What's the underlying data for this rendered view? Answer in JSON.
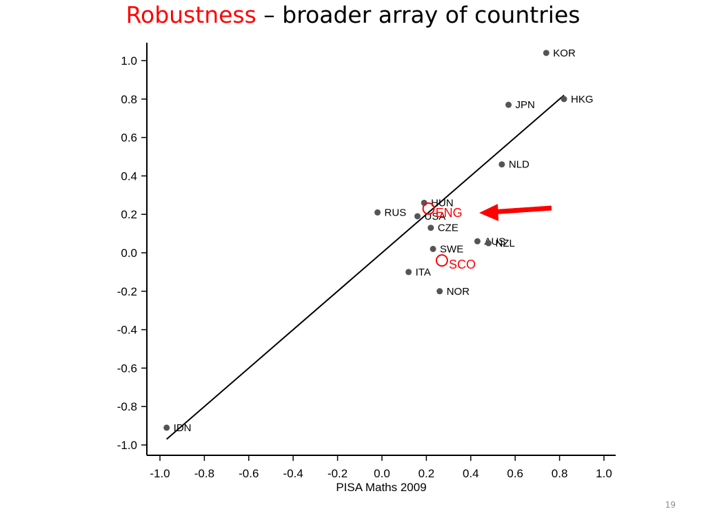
{
  "slide": {
    "title_accent": "Robustness",
    "title_rest": " – broader array of countries",
    "page_number": "19"
  },
  "chart_data": {
    "type": "scatter",
    "title": "",
    "xlabel": "PISA Maths 2009",
    "ylabel": "",
    "xlim": [
      -1.0,
      1.0
    ],
    "ylim": [
      -1.0,
      1.0
    ],
    "xticks": [
      "-1.0",
      "-0.8",
      "-0.6",
      "-0.4",
      "-0.2",
      "0.0",
      "0.2",
      "0.4",
      "0.6",
      "0.8",
      "1.0"
    ],
    "yticks": [
      "1.0",
      "0.8",
      "0.6",
      "0.4",
      "0.2",
      "0.0",
      "-0.2",
      "-0.4",
      "-0.6",
      "-0.8",
      "-1.0"
    ],
    "grid": false,
    "points": [
      {
        "label": "KOR",
        "x": 0.74,
        "y": 1.04
      },
      {
        "label": "HKG",
        "x": 0.82,
        "y": 0.8
      },
      {
        "label": "JPN",
        "x": 0.57,
        "y": 0.77
      },
      {
        "label": "NLD",
        "x": 0.54,
        "y": 0.46
      },
      {
        "label": "HUN",
        "x": 0.19,
        "y": 0.26
      },
      {
        "label": "RUS",
        "x": -0.02,
        "y": 0.21
      },
      {
        "label": "USA",
        "x": 0.16,
        "y": 0.19
      },
      {
        "label": "CZE",
        "x": 0.22,
        "y": 0.13
      },
      {
        "label": "AUS",
        "x": 0.43,
        "y": 0.06
      },
      {
        "label": "NZL",
        "x": 0.48,
        "y": 0.05
      },
      {
        "label": "SWE",
        "x": 0.23,
        "y": 0.02
      },
      {
        "label": "ITA",
        "x": 0.12,
        "y": -0.1
      },
      {
        "label": "NOR",
        "x": 0.26,
        "y": -0.2
      },
      {
        "label": "IDN",
        "x": -0.97,
        "y": -0.91
      }
    ],
    "highlighted_points": [
      {
        "label": "ENG",
        "x": 0.21,
        "y": 0.23
      },
      {
        "label": "SCO",
        "x": 0.27,
        "y": -0.04
      }
    ],
    "fit_line": {
      "x1": -0.97,
      "y1": -0.97,
      "x2": 0.82,
      "y2": 0.82
    },
    "colors": {
      "point": "#555555",
      "highlight": "#ff0000",
      "arrow": "#ff0000",
      "axis": "#000000",
      "fit_line": "#000000"
    }
  }
}
